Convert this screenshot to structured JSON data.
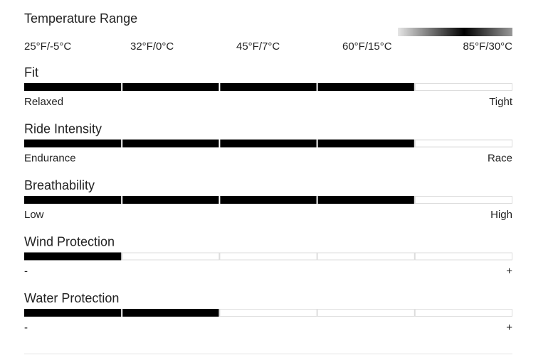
{
  "temperature_range": {
    "title": "Temperature Range",
    "labels": [
      "25°F/-5°C",
      "32°F/0°C",
      "45°F/7°C",
      "60°F/15°C",
      "85°F/30°C"
    ]
  },
  "ratings": [
    {
      "title": "Fit",
      "low_label": "Relaxed",
      "high_label": "Tight",
      "level": 4,
      "max": 5
    },
    {
      "title": "Ride Intensity",
      "low_label": "Endurance",
      "high_label": "Race",
      "level": 4,
      "max": 5
    },
    {
      "title": "Breathability",
      "low_label": "Low",
      "high_label": "High",
      "level": 4,
      "max": 5
    },
    {
      "title": "Wind Protection",
      "low_label": "-",
      "high_label": "+",
      "level": 1,
      "max": 5
    },
    {
      "title": "Water Protection",
      "low_label": "-",
      "high_label": "+",
      "level": 2,
      "max": 5
    }
  ]
}
